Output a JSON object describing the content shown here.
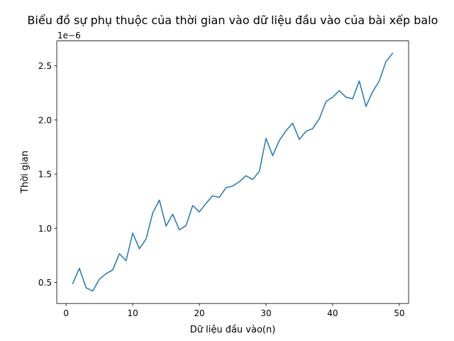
{
  "chart_data": {
    "type": "line",
    "title": "Biểu đồ sự phụ thuộc của thời gian vào dữ liệu đầu vào của bài xếp balo",
    "xlabel": "Dữ liệu đầu vào(n)",
    "ylabel": "Thời gian",
    "offset_text": "1e−6",
    "xlim": [
      -1.4,
      51.4
    ],
    "ylim": [
      3.05e-07,
      2.73e-06
    ],
    "xticks": [
      0,
      10,
      20,
      30,
      40,
      50
    ],
    "yticks": [
      5e-07,
      1e-06,
      1.5e-06,
      2e-06,
      2.5e-06
    ],
    "xtick_labels": [
      "0",
      "10",
      "20",
      "30",
      "40",
      "50"
    ],
    "ytick_labels": [
      "0.5",
      "1.0",
      "1.5",
      "2.0",
      "2.5"
    ],
    "line_color": "#1f77b4",
    "grid": false,
    "x": [
      1,
      2,
      3,
      4,
      5,
      6,
      7,
      8,
      9,
      10,
      11,
      12,
      13,
      14,
      15,
      16,
      17,
      18,
      19,
      20,
      21,
      22,
      23,
      24,
      25,
      26,
      27,
      28,
      29,
      30,
      31,
      32,
      33,
      34,
      35,
      36,
      37,
      38,
      39,
      40,
      41,
      42,
      43,
      44,
      45,
      46,
      47,
      48,
      49
    ],
    "series": [
      {
        "values": [
          4.9e-07,
          6.3e-07,
          4.5e-07,
          4.2e-07,
          5.3e-07,
          5.8e-07,
          6.15e-07,
          7.65e-07,
          7e-07,
          9.55e-07,
          8.1e-07,
          9e-07,
          1.14e-06,
          1.26e-06,
          1.02e-06,
          1.13e-06,
          9.85e-07,
          1.025e-06,
          1.21e-06,
          1.15e-06,
          1.23e-06,
          1.3e-06,
          1.285e-06,
          1.375e-06,
          1.39e-06,
          1.43e-06,
          1.485e-06,
          1.45e-06,
          1.525e-06,
          1.83e-06,
          1.67e-06,
          1.81e-06,
          1.9e-06,
          1.97e-06,
          1.82e-06,
          1.895e-06,
          1.92e-06,
          2.01e-06,
          2.17e-06,
          2.21e-06,
          2.27e-06,
          2.21e-06,
          2.195e-06,
          2.36e-06,
          2.125e-06,
          2.26e-06,
          2.36e-06,
          2.54e-06,
          2.615e-06
        ]
      }
    ]
  }
}
